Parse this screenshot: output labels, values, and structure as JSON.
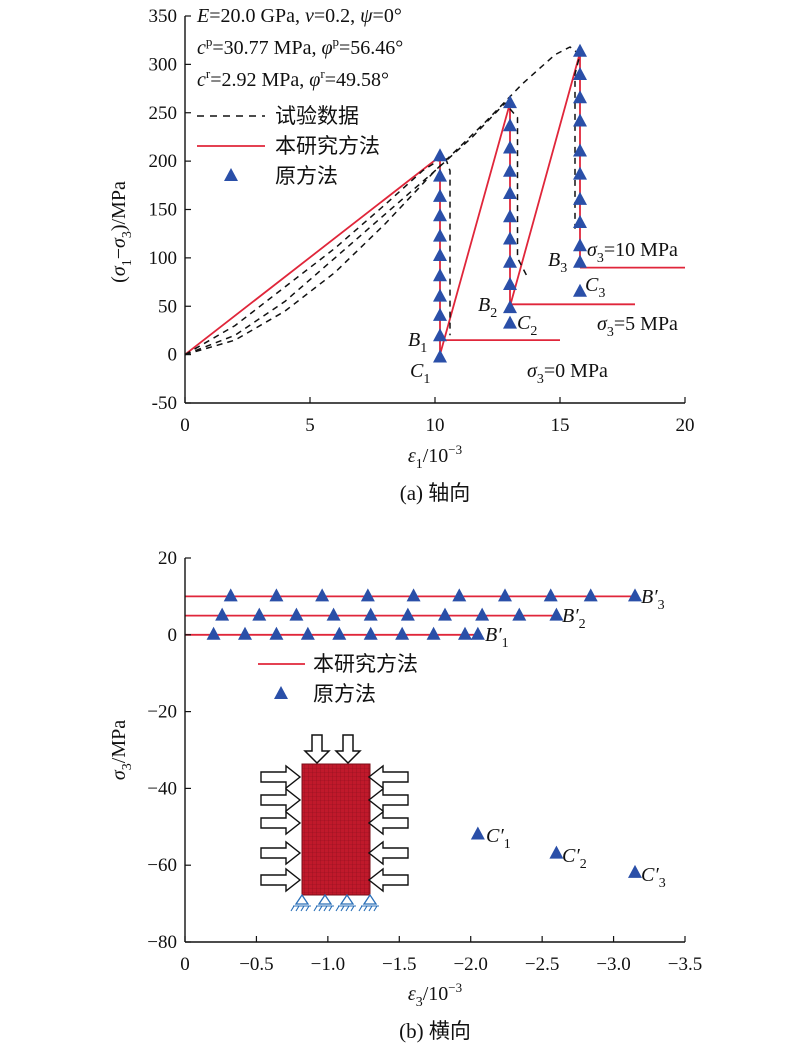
{
  "chart_data": [
    {
      "type": "line",
      "caption": "(a) 轴向",
      "xlabel": "ε1/10⁻³",
      "ylabel": "(σ1−σ3)/MPa",
      "xlim": [
        0,
        20
      ],
      "ylim": [
        -50,
        350
      ],
      "xticks": [
        0,
        5,
        10,
        15,
        20
      ],
      "yticks": [
        -50,
        0,
        50,
        100,
        150,
        200,
        250,
        300,
        350
      ],
      "params": [
        "E=20.0 GPa, ν=0.2, ψ=0°",
        "cᵖ=30.77 MPa, φᵖ=56.46°",
        "cʳ=2.92 MPa, φʳ=49.58°"
      ],
      "legend": [
        "试验数据",
        "本研究方法",
        "原方法"
      ],
      "series": [
        {
          "name": "本研究方法",
          "style": "red-solid",
          "x": [
            0,
            10.2,
            10.2,
            13.0,
            13.0,
            15.8,
            15.8
          ],
          "y": [
            0,
            205,
            0,
            260,
            50,
            312,
            90
          ]
        },
        {
          "name": "本研究方法",
          "style": "red-solid",
          "x": [
            10.2,
            15.0
          ],
          "y": [
            15,
            15
          ]
        },
        {
          "name": "本研究方法",
          "style": "red-solid",
          "x": [
            13.0,
            18.0
          ],
          "y": [
            52,
            52
          ]
        },
        {
          "name": "本研究方法",
          "style": "red-solid",
          "x": [
            15.8,
            20.0
          ],
          "y": [
            90,
            90
          ]
        },
        {
          "name": "试验数据",
          "style": "black-dash",
          "x": [
            0,
            2,
            4,
            6,
            8,
            9.5,
            10.4,
            10.6,
            10.6
          ],
          "y": [
            0,
            30,
            70,
            110,
            155,
            190,
            205,
            190,
            20
          ]
        },
        {
          "name": "试验数据",
          "style": "black-dash",
          "x": [
            0,
            2,
            4,
            6,
            8,
            10,
            11.5,
            12.8,
            13.3,
            13.3,
            13.7
          ],
          "y": [
            0,
            20,
            55,
            100,
            145,
            190,
            225,
            260,
            245,
            100,
            80
          ]
        },
        {
          "name": "试验数据",
          "style": "black-dash",
          "x": [
            0,
            2,
            4,
            6,
            8,
            10,
            12,
            13.5,
            14.8,
            15.4,
            15.8,
            15.6,
            15.6
          ],
          "y": [
            0,
            15,
            45,
            85,
            135,
            190,
            240,
            280,
            310,
            318,
            310,
            290,
            130
          ]
        },
        {
          "name": "原方法",
          "style": "blue-triangle",
          "x": [
            10.2,
            10.2,
            10.2,
            10.2,
            10.2,
            10.2,
            10.2,
            10.2,
            10.2,
            10.2,
            10.2
          ],
          "y": [
            205,
            184,
            163,
            143,
            122,
            102,
            81,
            60,
            40,
            19,
            -3
          ]
        },
        {
          "name": "原方法",
          "style": "blue-triangle",
          "x": [
            13.0,
            13.0,
            13.0,
            13.0,
            13.0,
            13.0,
            13.0,
            13.0,
            13.0,
            13.0,
            13.0
          ],
          "y": [
            260,
            236,
            213,
            189,
            166,
            142,
            119,
            95,
            72,
            48,
            32
          ]
        },
        {
          "name": "原方法",
          "style": "blue-triangle",
          "x": [
            15.8,
            15.8,
            15.8,
            15.8,
            15.8,
            15.8,
            15.8,
            15.8,
            15.8,
            15.8,
            15.8
          ],
          "y": [
            313,
            289,
            265,
            241,
            210,
            186,
            160,
            136,
            112,
            95,
            65
          ]
        }
      ],
      "annotations": [
        {
          "text": "B1",
          "x": 9.0,
          "y": 17
        },
        {
          "text": "C1",
          "x": 9.2,
          "y": -20
        },
        {
          "text": "B2",
          "x": 11.8,
          "y": 50
        },
        {
          "text": "C2",
          "x": 13.2,
          "y": 30
        },
        {
          "text": "B3",
          "x": 14.5,
          "y": 98
        },
        {
          "text": "C3",
          "x": 16.1,
          "y": 73
        },
        {
          "text": "σ3=0 MPa",
          "x": 13.7,
          "y": -20
        },
        {
          "text": "σ3=5 MPa",
          "x": 16.6,
          "y": 30
        },
        {
          "text": "σ3=10 MPa",
          "x": 16.2,
          "y": 108
        }
      ]
    },
    {
      "type": "line",
      "caption": "(b) 横向",
      "xlabel": "ε3/10⁻³",
      "ylabel": "σ3/MPa",
      "xlim": [
        0,
        -3.5
      ],
      "ylim": [
        -80,
        20
      ],
      "xticks": [
        0,
        -0.5,
        -1.0,
        -1.5,
        -2.0,
        -2.5,
        -3.0,
        -3.5
      ],
      "xtick_labels": [
        "0",
        "−0.5",
        "−1.0",
        "−1.5",
        "−2.0",
        "−2.5",
        "−3.0",
        "−3.5"
      ],
      "yticks": [
        -80,
        -60,
        -40,
        -20,
        0,
        20
      ],
      "ytick_labels": [
        "−80",
        "−60",
        "−40",
        "−20",
        "0",
        "20"
      ],
      "legend": [
        "本研究方法",
        "原方法"
      ],
      "series": [
        {
          "name": "本研究方法",
          "style": "red-solid",
          "x": [
            0,
            -2.05
          ],
          "y": [
            0,
            0
          ]
        },
        {
          "name": "本研究方法",
          "style": "red-solid",
          "x": [
            0,
            -2.6
          ],
          "y": [
            5,
            5
          ]
        },
        {
          "name": "本研究方法",
          "style": "red-solid",
          "x": [
            0,
            -3.15
          ],
          "y": [
            10,
            10
          ]
        },
        {
          "name": "原方法",
          "style": "blue-triangle",
          "x": [
            -0.2,
            -0.42,
            -0.64,
            -0.86,
            -1.08,
            -1.3,
            -1.52,
            -1.74,
            -1.96,
            -2.05
          ],
          "y": [
            0,
            0,
            0,
            0,
            0,
            0,
            0,
            0,
            0,
            0
          ]
        },
        {
          "name": "原方法",
          "style": "blue-triangle",
          "x": [
            -0.26,
            -0.52,
            -0.78,
            -1.04,
            -1.3,
            -1.56,
            -1.82,
            -2.08,
            -2.34,
            -2.6
          ],
          "y": [
            5,
            5,
            5,
            5,
            5,
            5,
            5,
            5,
            5,
            5
          ]
        },
        {
          "name": "原方法",
          "style": "blue-triangle",
          "x": [
            -0.32,
            -0.64,
            -0.96,
            -1.28,
            -1.6,
            -1.92,
            -2.24,
            -2.56,
            -2.84,
            -3.15
          ],
          "y": [
            10,
            10,
            10,
            10,
            10,
            10,
            10,
            10,
            10,
            10
          ]
        },
        {
          "name": "原方法",
          "style": "blue-triangle",
          "x": [
            -2.05,
            -2.6,
            -3.15
          ],
          "y": [
            -52,
            -57,
            -62
          ]
        }
      ],
      "annotations": [
        {
          "text": "B′1",
          "x": -2.12,
          "y": -3
        },
        {
          "text": "B′2",
          "x": -2.65,
          "y": 3
        },
        {
          "text": "B′3",
          "x": -3.2,
          "y": 9
        },
        {
          "text": "C′1",
          "x": -2.12,
          "y": -55
        },
        {
          "text": "C′2",
          "x": -2.65,
          "y": -60
        },
        {
          "text": "C′3",
          "x": -3.2,
          "y": -65
        }
      ]
    }
  ],
  "colors": {
    "red": "#e0263a",
    "blue": "#2a4fa8",
    "black": "#111111",
    "specimen": "#c0192b"
  }
}
